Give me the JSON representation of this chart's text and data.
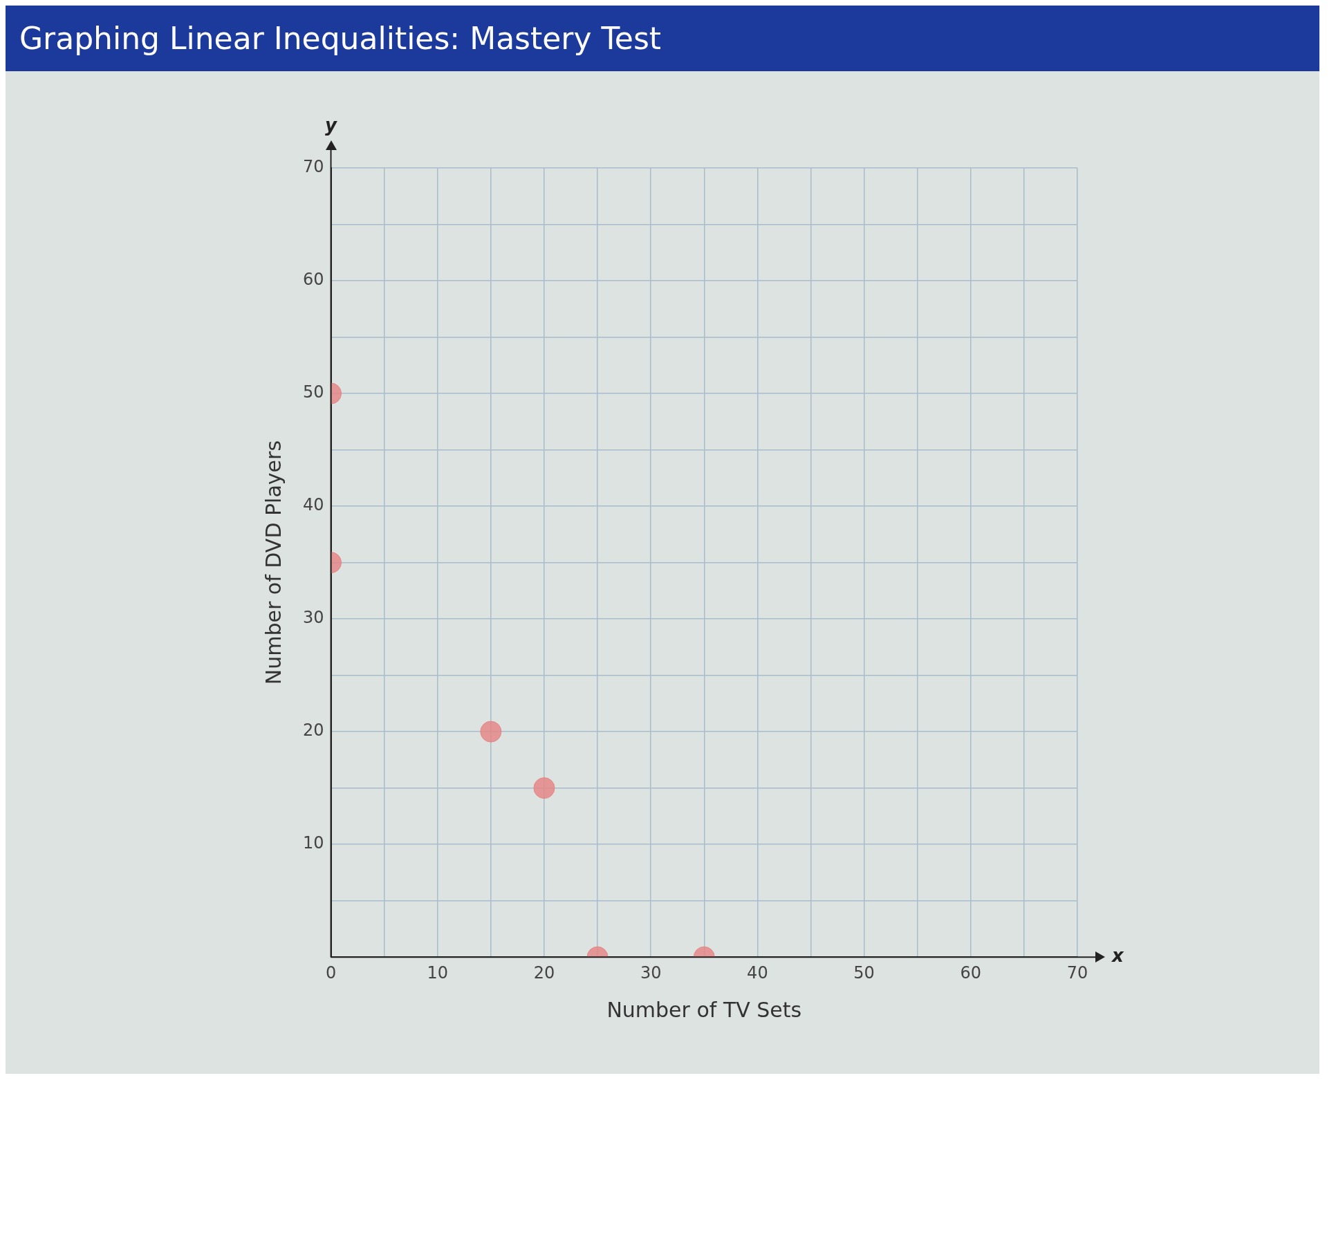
{
  "chart_data": {
    "type": "scatter",
    "title": "Graphing Linear Inequalities: Mastery Test",
    "xlabel": "Number of TV Sets",
    "ylabel": "Number of DVD Players",
    "annotations": [
      "x",
      "y"
    ],
    "x": [
      0,
      0,
      15,
      20,
      25,
      35
    ],
    "values": [
      50,
      35,
      20,
      15,
      0,
      0
    ],
    "color": "#e58585",
    "marker": "circle",
    "xlim": [
      0,
      70
    ],
    "ylim": [
      0,
      70
    ],
    "xticks": [
      0,
      {
        "value": 5,
        "label": null
      },
      10,
      {
        "value": 15,
        "label": null
      },
      20,
      {
        "value": 25,
        "label": null
      },
      30,
      {
        "value": 35,
        "label": null
      },
      40,
      {
        "value": 45,
        "label": null
      },
      50,
      {
        "value": 55,
        "label": null
      },
      60,
      {
        "value": 65,
        "label": null
      },
      70
    ],
    "yticks": [
      {
        "value": 0,
        "label": null
      },
      {
        "value": 5,
        "label": null
      },
      10,
      {
        "value": 15,
        "label": null
      },
      20,
      {
        "value": 25,
        "label": null
      },
      30,
      {
        "value": 35,
        "label": null
      },
      40,
      {
        "value": 45,
        "label": null
      },
      50,
      {
        "value": 55,
        "label": null
      },
      60,
      {
        "value": 65,
        "label": null
      },
      70
    ],
    "grid": true,
    "legend": false
  }
}
